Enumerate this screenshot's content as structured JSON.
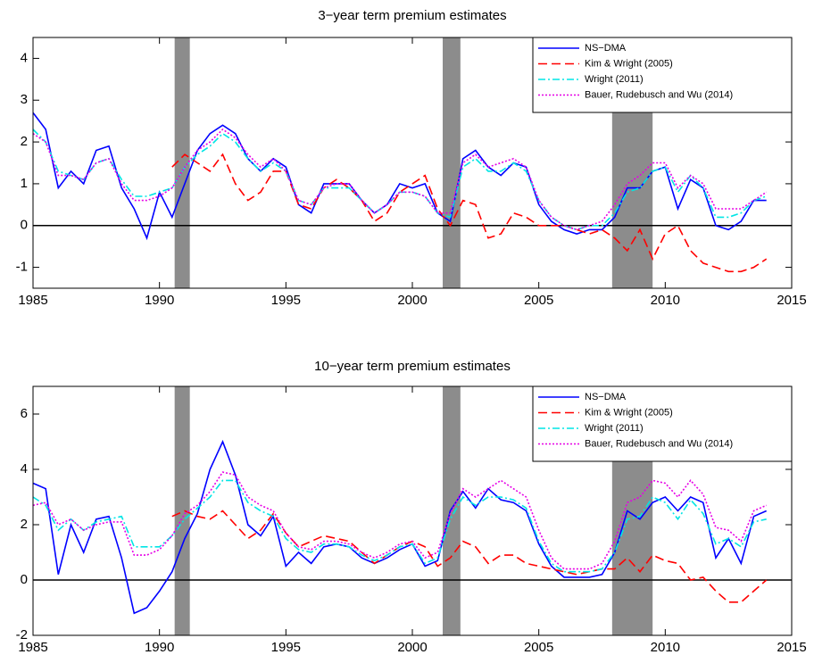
{
  "chart_data": [
    {
      "type": "line",
      "title": "3−year term premium estimates",
      "x": [
        1985,
        1985.5,
        1986,
        1986.5,
        1987,
        1987.5,
        1988,
        1988.5,
        1989,
        1989.5,
        1990,
        1990.5,
        1991,
        1991.5,
        1992,
        1992.5,
        1993,
        1993.5,
        1994,
        1994.5,
        1995,
        1995.5,
        1996,
        1996.5,
        1997,
        1997.5,
        1998,
        1998.5,
        1999,
        1999.5,
        2000,
        2000.5,
        2001,
        2001.5,
        2002,
        2002.5,
        2003,
        2003.5,
        2004,
        2004.5,
        2005,
        2005.5,
        2006,
        2006.5,
        2007,
        2007.5,
        2008,
        2008.5,
        2009,
        2009.5,
        2010,
        2010.5,
        2011,
        2011.5,
        2012,
        2012.5,
        2013,
        2013.5,
        2014
      ],
      "series": [
        {
          "name": "NS−DMA",
          "color": "#0000ff",
          "dash": "solid",
          "values": [
            2.7,
            2.3,
            0.9,
            1.3,
            1.0,
            1.8,
            1.9,
            0.9,
            0.4,
            -0.3,
            0.8,
            0.2,
            1.0,
            1.8,
            2.2,
            2.4,
            2.2,
            1.6,
            1.3,
            1.6,
            1.4,
            0.5,
            0.3,
            1.0,
            1.0,
            1.0,
            0.6,
            0.3,
            0.5,
            1.0,
            0.9,
            1.0,
            0.3,
            0.1,
            1.6,
            1.8,
            1.4,
            1.2,
            1.5,
            1.4,
            0.5,
            0.1,
            -0.1,
            -0.2,
            -0.1,
            -0.1,
            0.2,
            0.9,
            0.9,
            1.3,
            1.4,
            0.4,
            1.1,
            0.9,
            0.0,
            -0.1,
            0.1,
            0.6,
            0.6
          ]
        },
        {
          "name": "Kim & Wright (2005)",
          "color": "#ff0000",
          "dash": "dashed",
          "values": [
            null,
            null,
            null,
            null,
            null,
            null,
            null,
            null,
            null,
            null,
            null,
            1.4,
            1.7,
            1.5,
            1.3,
            1.7,
            1.0,
            0.6,
            0.8,
            1.3,
            1.3,
            0.5,
            0.4,
            0.9,
            1.1,
            0.9,
            0.6,
            0.1,
            0.3,
            0.8,
            1.0,
            1.2,
            0.4,
            0.0,
            0.6,
            0.5,
            -0.3,
            -0.2,
            0.3,
            0.2,
            0.0,
            0.0,
            0.0,
            -0.1,
            -0.2,
            -0.1,
            -0.3,
            -0.6,
            -0.1,
            -0.8,
            -0.2,
            0.0,
            -0.6,
            -0.9,
            -1.0,
            -1.1,
            -1.1,
            -1.0,
            -0.8
          ]
        },
        {
          "name": "Wright (2011)",
          "color": "#00e5e5",
          "dash": "dashdot",
          "values": [
            2.3,
            2.0,
            1.3,
            1.2,
            1.1,
            1.5,
            1.6,
            1.1,
            0.7,
            0.7,
            0.8,
            0.9,
            1.4,
            1.7,
            1.9,
            2.2,
            2.0,
            1.6,
            1.3,
            1.5,
            1.3,
            0.6,
            0.5,
            0.9,
            0.9,
            0.9,
            0.6,
            0.3,
            0.5,
            0.8,
            0.8,
            0.7,
            0.3,
            0.2,
            1.4,
            1.6,
            1.3,
            1.3,
            1.5,
            1.3,
            0.6,
            0.2,
            0.0,
            -0.1,
            0.0,
            0.0,
            0.3,
            0.8,
            0.9,
            1.3,
            1.4,
            0.8,
            1.2,
            0.9,
            0.2,
            0.2,
            0.3,
            0.6,
            0.7
          ]
        },
        {
          "name": "Bauer, Rudebusch and Wu (2014)",
          "color": "#e600e6",
          "dash": "dotted",
          "values": [
            2.2,
            2.0,
            1.2,
            1.2,
            1.1,
            1.5,
            1.6,
            1.0,
            0.6,
            0.6,
            0.7,
            0.9,
            1.4,
            1.8,
            2.0,
            2.3,
            2.1,
            1.7,
            1.4,
            1.6,
            1.3,
            0.6,
            0.5,
            0.9,
            1.0,
            1.0,
            0.6,
            0.3,
            0.5,
            0.8,
            0.8,
            0.7,
            0.3,
            0.3,
            1.5,
            1.7,
            1.4,
            1.5,
            1.6,
            1.4,
            0.6,
            0.2,
            0.0,
            -0.1,
            0.0,
            0.1,
            0.5,
            1.0,
            1.2,
            1.5,
            1.5,
            0.9,
            1.2,
            1.0,
            0.4,
            0.4,
            0.4,
            0.6,
            0.8
          ]
        }
      ],
      "shaded": [
        [
          1990.6,
          1991.2
        ],
        [
          2001.2,
          2001.9
        ],
        [
          2007.9,
          2009.5
        ]
      ],
      "hline": 0,
      "xlim": [
        1985,
        2015
      ],
      "xticks": [
        1985,
        1990,
        1995,
        2000,
        2005,
        2010,
        2015
      ],
      "ylim": [
        -1.5,
        4.5
      ],
      "yticks": [
        -1,
        0,
        1,
        2,
        3,
        4
      ],
      "legend": "upper right",
      "grid": false
    },
    {
      "type": "line",
      "title": "10−year term premium estimates",
      "x": [
        1985,
        1985.5,
        1986,
        1986.5,
        1987,
        1987.5,
        1988,
        1988.5,
        1989,
        1989.5,
        1990,
        1990.5,
        1991,
        1991.5,
        1992,
        1992.5,
        1993,
        1993.5,
        1994,
        1994.5,
        1995,
        1995.5,
        1996,
        1996.5,
        1997,
        1997.5,
        1998,
        1998.5,
        1999,
        1999.5,
        2000,
        2000.5,
        2001,
        2001.5,
        2002,
        2002.5,
        2003,
        2003.5,
        2004,
        2004.5,
        2005,
        2005.5,
        2006,
        2006.5,
        2007,
        2007.5,
        2008,
        2008.5,
        2009,
        2009.5,
        2010,
        2010.5,
        2011,
        2011.5,
        2012,
        2012.5,
        2013,
        2013.5,
        2014
      ],
      "series": [
        {
          "name": "NS−DMA",
          "color": "#0000ff",
          "dash": "solid",
          "values": [
            3.5,
            3.3,
            0.2,
            2.0,
            1.0,
            2.2,
            2.3,
            0.8,
            -1.2,
            -1.0,
            -0.4,
            0.3,
            1.5,
            2.4,
            4.0,
            5.0,
            3.8,
            2.0,
            1.6,
            2.3,
            0.5,
            1.0,
            0.6,
            1.2,
            1.3,
            1.2,
            0.8,
            0.6,
            0.8,
            1.1,
            1.3,
            0.5,
            0.7,
            2.5,
            3.2,
            2.6,
            3.3,
            2.9,
            2.8,
            2.5,
            1.3,
            0.5,
            0.1,
            0.1,
            0.1,
            0.2,
            1.0,
            2.5,
            2.2,
            2.8,
            3.0,
            2.5,
            3.0,
            2.8,
            0.8,
            1.5,
            0.6,
            2.3,
            2.5
          ]
        },
        {
          "name": "Kim & Wright (2005)",
          "color": "#ff0000",
          "dash": "dashed",
          "values": [
            null,
            null,
            null,
            null,
            null,
            null,
            null,
            null,
            null,
            null,
            null,
            2.3,
            2.5,
            2.3,
            2.2,
            2.5,
            2.0,
            1.5,
            1.8,
            2.4,
            1.7,
            1.2,
            1.4,
            1.6,
            1.5,
            1.4,
            1.0,
            0.6,
            0.9,
            1.2,
            1.4,
            1.2,
            0.5,
            0.8,
            1.4,
            1.2,
            0.6,
            0.9,
            0.9,
            0.6,
            0.5,
            0.4,
            0.3,
            0.2,
            0.3,
            0.4,
            0.4,
            0.8,
            0.3,
            0.9,
            0.7,
            0.6,
            0.0,
            0.1,
            -0.4,
            -0.8,
            -0.8,
            -0.4,
            0.0
          ]
        },
        {
          "name": "Wright (2011)",
          "color": "#00e5e5",
          "dash": "dashdot",
          "values": [
            3.0,
            2.7,
            1.8,
            2.2,
            1.8,
            2.1,
            2.2,
            2.3,
            1.2,
            1.2,
            1.2,
            1.6,
            2.2,
            2.6,
            3.0,
            3.6,
            3.6,
            2.8,
            2.5,
            2.3,
            1.5,
            1.1,
            1.0,
            1.3,
            1.3,
            1.2,
            0.9,
            0.7,
            0.9,
            1.2,
            1.3,
            0.6,
            0.8,
            2.2,
            3.0,
            2.7,
            3.0,
            3.0,
            2.9,
            2.6,
            1.4,
            0.6,
            0.3,
            0.3,
            0.3,
            0.4,
            1.0,
            2.2,
            2.3,
            3.0,
            2.8,
            2.2,
            2.9,
            2.4,
            1.3,
            1.5,
            1.2,
            2.1,
            2.2
          ]
        },
        {
          "name": "Bauer, Rudebusch and Wu (2014)",
          "color": "#e600e6",
          "dash": "dotted",
          "values": [
            2.7,
            2.8,
            2.0,
            2.2,
            1.8,
            2.0,
            2.1,
            2.1,
            0.9,
            0.9,
            1.1,
            1.6,
            2.4,
            2.7,
            3.2,
            3.9,
            3.8,
            3.0,
            2.7,
            2.5,
            1.7,
            1.2,
            1.1,
            1.4,
            1.4,
            1.3,
            1.0,
            0.8,
            1.0,
            1.3,
            1.4,
            0.8,
            1.0,
            2.4,
            3.3,
            3.0,
            3.3,
            3.6,
            3.3,
            3.0,
            1.8,
            0.8,
            0.4,
            0.4,
            0.4,
            0.6,
            1.4,
            2.8,
            3.0,
            3.6,
            3.5,
            3.0,
            3.6,
            3.1,
            1.9,
            1.8,
            1.4,
            2.5,
            2.7
          ]
        }
      ],
      "shaded": [
        [
          1990.6,
          1991.2
        ],
        [
          2001.2,
          2001.9
        ],
        [
          2007.9,
          2009.5
        ]
      ],
      "hline": 0,
      "xlim": [
        1985,
        2015
      ],
      "xticks": [
        1985,
        1990,
        1995,
        2000,
        2005,
        2010,
        2015
      ],
      "ylim": [
        -2,
        7
      ],
      "yticks": [
        -2,
        0,
        2,
        4,
        6
      ],
      "legend": "upper right",
      "grid": false
    }
  ]
}
